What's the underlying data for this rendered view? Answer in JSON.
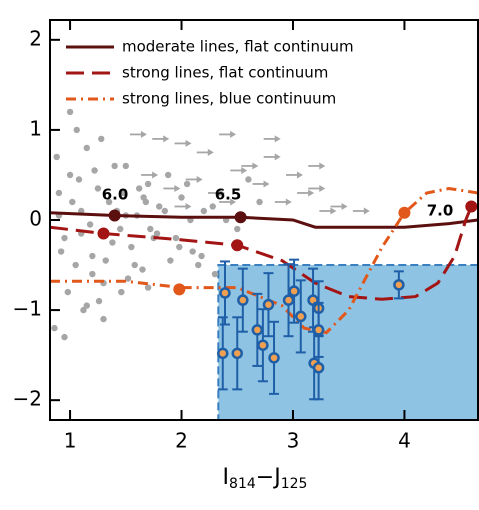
{
  "chart_data": {
    "type": "scatter",
    "xlabel": [
      "I",
      "814",
      "−J",
      "125"
    ],
    "xlim": [
      0.82,
      4.66
    ],
    "ylim": [
      -2.22,
      2.22
    ],
    "xticks": [
      1,
      2,
      3,
      4
    ],
    "yticks": [
      {
        "value": -2,
        "label": "−2"
      },
      {
        "value": -1,
        "label": "−1"
      },
      0,
      1,
      2
    ],
    "region": {
      "color": "#8ec3e3",
      "x": [
        2.33,
        4.66
      ],
      "y": [
        -2.22,
        -0.5
      ]
    },
    "points": {
      "color": "#a6a6a6",
      "x": [
        0.9,
        0.95,
        1.0,
        1.05,
        1.1,
        1.15,
        1.2,
        1.25,
        1.3,
        1.35,
        1.45,
        1.5,
        1.55,
        1.6,
        1.65,
        1.7,
        1.75,
        1.8,
        1.9,
        2.0,
        2.1,
        2.2,
        2.3,
        2.4,
        0.88,
        0.98,
        1.08,
        1.18,
        1.28,
        1.38,
        1.48,
        1.58,
        1.68,
        1.78,
        1.88,
        1.98,
        2.08,
        2.18,
        2.28,
        0.92,
        1.02,
        1.12,
        1.22,
        1.32,
        1.42,
        1.52,
        1.62,
        1.72,
        1.85,
        1.95,
        2.05,
        2.15,
        0.86,
        1.06,
        1.26,
        1.46,
        1.66,
        2.5,
        2.6,
        2.7,
        0.9,
        1.1,
        1.3,
        1.5,
        1.7,
        1.0,
        1.2,
        1.4,
        0.95,
        1.15
      ],
      "y": [
        0.3,
        -0.2,
        0.5,
        -0.5,
        0.1,
        0.8,
        -0.4,
        0.35,
        -0.7,
        0.2,
        -0.1,
        0.6,
        -0.3,
        0.05,
        -0.55,
        0.4,
        -0.2,
        0.15,
        -0.45,
        0.25,
        -0.35,
        0.1,
        -0.6,
        0.0,
        0.7,
        -0.8,
        0.45,
        -0.05,
        0.9,
        -0.25,
        0.3,
        -0.5,
        0.2,
        -0.15,
        0.5,
        -0.3,
        0.0,
        -0.4,
        0.15,
        -0.35,
        0.2,
        -1.0,
        0.55,
        -0.45,
        0.1,
        -0.65,
        0.35,
        -0.1,
        0.1,
        -0.2,
        0.4,
        -0.5,
        -1.2,
        1.0,
        -0.9,
        -0.8,
        0.25,
        -0.1,
        0.45,
        0.2,
        0.05,
        -0.15,
        -1.1,
        0.05,
        -0.75,
        1.2,
        -0.6,
        0.6,
        -1.3,
        -0.95
      ]
    },
    "limits": {
      "color": "#a6a6a6",
      "x": [
        1.6,
        1.8,
        2.0,
        2.2,
        2.4,
        2.6,
        2.8,
        3.0,
        3.2,
        3.4,
        1.7,
        1.9,
        2.1,
        2.3,
        2.5,
        2.7,
        2.9,
        3.1,
        3.3,
        2.0,
        2.4,
        2.8,
        3.2,
        3.6
      ],
      "y": [
        0.95,
        0.9,
        0.85,
        0.75,
        0.95,
        0.6,
        0.9,
        0.5,
        0.35,
        0.15,
        0.5,
        0.35,
        0.45,
        0.3,
        0.55,
        0.4,
        0.2,
        0.3,
        0.1,
        0.15,
        0.2,
        0.7,
        0.6,
        0.1
      ]
    },
    "sample": {
      "color": "#1f5fa8",
      "x": [
        2.39,
        2.37,
        2.5,
        2.55,
        2.68,
        2.73,
        2.78,
        2.83,
        2.96,
        3.01,
        3.07,
        3.18,
        3.19,
        3.23,
        3.23,
        3.23,
        3.95
      ],
      "y": [
        -0.81,
        -1.48,
        -1.48,
        -0.89,
        -1.22,
        -1.39,
        -0.94,
        -1.53,
        -0.89,
        -0.79,
        -1.07,
        -0.89,
        -1.59,
        -0.98,
        -1.22,
        -1.64,
        -0.72
      ],
      "yerr": [
        0.35,
        0.4,
        0.4,
        0.35,
        0.4,
        0.4,
        0.35,
        0.4,
        0.4,
        0.35,
        0.4,
        0.35,
        0.4,
        0.3,
        0.3,
        0.35,
        0.15
      ]
    },
    "series": [
      {
        "name": "moderate lines, flat continuum",
        "color": "#5c0f0f",
        "dash": "",
        "x": [
          0.82,
          1.4,
          2.0,
          2.53,
          3.0,
          3.2,
          3.5,
          4.0,
          4.4,
          4.66
        ],
        "y": [
          0.08,
          0.05,
          0.03,
          0.03,
          0.0,
          -0.08,
          -0.08,
          -0.08,
          -0.04,
          0.0
        ],
        "markers": {
          "x": [
            1.4,
            2.53
          ],
          "y": [
            0.05,
            0.03
          ]
        }
      },
      {
        "name": "strong lines, flat continuum",
        "color": "#a31414",
        "dash": "18,8",
        "x": [
          0.82,
          1.3,
          2.0,
          2.5,
          2.9,
          3.2,
          3.5,
          3.8,
          4.1,
          4.3,
          4.45,
          4.55,
          4.6
        ],
        "y": [
          -0.08,
          -0.15,
          -0.22,
          -0.28,
          -0.45,
          -0.7,
          -0.85,
          -0.88,
          -0.85,
          -0.7,
          -0.4,
          0.0,
          0.15
        ],
        "markers": {
          "x": [
            1.3,
            2.5,
            4.6
          ],
          "y": [
            -0.15,
            -0.28,
            0.15
          ]
        }
      },
      {
        "name": "strong lines, blue continuum",
        "color": "#e2571a",
        "dash": "10,5,2,5",
        "x": [
          0.82,
          1.5,
          2.0,
          2.5,
          2.9,
          3.1,
          3.3,
          3.5,
          3.8,
          4.0,
          4.2,
          4.4,
          4.66
        ],
        "y": [
          -0.68,
          -0.68,
          -0.75,
          -0.75,
          -0.95,
          -1.2,
          -1.25,
          -1.0,
          -0.3,
          0.08,
          0.3,
          0.35,
          0.3
        ],
        "markers": {
          "x": [
            1.98,
            4.0
          ],
          "y": [
            -0.77,
            0.08
          ]
        }
      }
    ],
    "annotations": [
      "6.0",
      "6.5",
      "7.0"
    ]
  }
}
